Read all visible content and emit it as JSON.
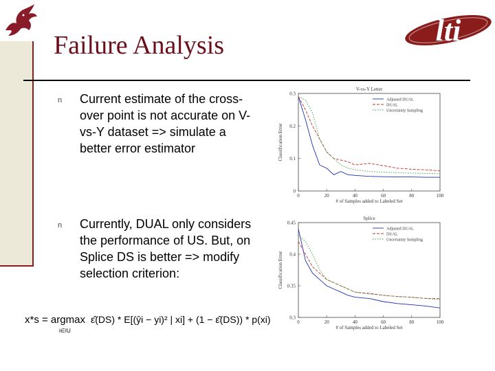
{
  "slide": {
    "title": "Failure Analysis",
    "logo_text": "lti",
    "bullet_marker": "n",
    "bullets": [
      {
        "text": "Current estimate of the cross-over point is not accurate on V-vs-Y dataset => simulate a better error estimator"
      },
      {
        "text": "Currently, DUAL only considers the performance of US. But, on Splice DS is better => modify selection criterion:"
      }
    ],
    "formula": {
      "lhs": "x*s = argmax",
      "subscript": "i∈IU",
      "rhs": "ε̂(DS) * E[(ŷi − yi)² | xi] + (1 − ε̂(DS)) * p(xi)"
    },
    "colors": {
      "accent": "#6b0f1a",
      "adjusted": "#1a2fb0",
      "dual": "#c0302b",
      "us": "#2e9a3a"
    }
  },
  "chart_data": [
    {
      "type": "line",
      "title": "V-vs-Y Letter",
      "xlabel": "# of Samples added to Labeled Set",
      "ylabel": "Classification Error",
      "xlim": [
        0,
        100
      ],
      "ylim": [
        0,
        0.3
      ],
      "xticks": [
        "0",
        "20",
        "40",
        "60",
        "80",
        "100"
      ],
      "yticks": [
        "0",
        "0.1",
        "0.2",
        "0.3"
      ],
      "legend_position": "top-right",
      "grid": false,
      "series": [
        {
          "name": "Adjusted DUAL",
          "x": [
            0,
            5,
            10,
            15,
            20,
            25,
            30,
            35,
            40,
            50,
            60,
            70,
            80,
            90,
            100
          ],
          "y": [
            0.29,
            0.22,
            0.14,
            0.08,
            0.07,
            0.05,
            0.06,
            0.05,
            0.048,
            0.045,
            0.044,
            0.043,
            0.043,
            0.042,
            0.042
          ]
        },
        {
          "name": "DUAL",
          "x": [
            0,
            5,
            10,
            15,
            20,
            25,
            30,
            35,
            40,
            50,
            60,
            70,
            80,
            90,
            100
          ],
          "y": [
            0.29,
            0.25,
            0.2,
            0.16,
            0.12,
            0.1,
            0.095,
            0.09,
            0.08,
            0.085,
            0.078,
            0.07,
            0.067,
            0.065,
            0.062
          ]
        },
        {
          "name": "Uncertainty Sampling",
          "x": [
            0,
            5,
            10,
            15,
            20,
            25,
            30,
            35,
            40,
            50,
            60,
            70,
            80,
            90,
            100
          ],
          "y": [
            0.29,
            0.28,
            0.24,
            0.16,
            0.12,
            0.1,
            0.08,
            0.07,
            0.065,
            0.06,
            0.058,
            0.056,
            0.055,
            0.054,
            0.053
          ]
        }
      ]
    },
    {
      "type": "line",
      "title": "Splice",
      "xlabel": "# of Samples added to Labeled Set",
      "ylabel": "Classification Error",
      "xlim": [
        0,
        100
      ],
      "ylim": [
        0.3,
        0.45
      ],
      "xticks": [
        "0",
        "20",
        "40",
        "60",
        "80",
        "100"
      ],
      "yticks": [
        "0.3",
        "0.35",
        "0.4",
        "0.45"
      ],
      "legend_position": "top-right",
      "grid": false,
      "series": [
        {
          "name": "Adjusted DUAL",
          "x": [
            0,
            5,
            10,
            15,
            20,
            25,
            30,
            35,
            40,
            50,
            60,
            70,
            80,
            90,
            100
          ],
          "y": [
            0.44,
            0.39,
            0.37,
            0.36,
            0.35,
            0.345,
            0.34,
            0.335,
            0.332,
            0.33,
            0.325,
            0.322,
            0.32,
            0.318,
            0.315
          ]
        },
        {
          "name": "DUAL",
          "x": [
            0,
            5,
            10,
            15,
            20,
            25,
            30,
            35,
            40,
            50,
            60,
            70,
            80,
            90,
            100
          ],
          "y": [
            0.42,
            0.4,
            0.38,
            0.37,
            0.36,
            0.355,
            0.35,
            0.345,
            0.34,
            0.338,
            0.335,
            0.333,
            0.332,
            0.33,
            0.33
          ]
        },
        {
          "name": "Uncertainty Sampling",
          "x": [
            0,
            5,
            10,
            15,
            20,
            25,
            30,
            35,
            40,
            50,
            60,
            70,
            80,
            90,
            100
          ],
          "y": [
            0.43,
            0.42,
            0.4,
            0.375,
            0.36,
            0.355,
            0.35,
            0.345,
            0.34,
            0.337,
            0.335,
            0.333,
            0.332,
            0.33,
            0.328
          ]
        }
      ]
    }
  ]
}
